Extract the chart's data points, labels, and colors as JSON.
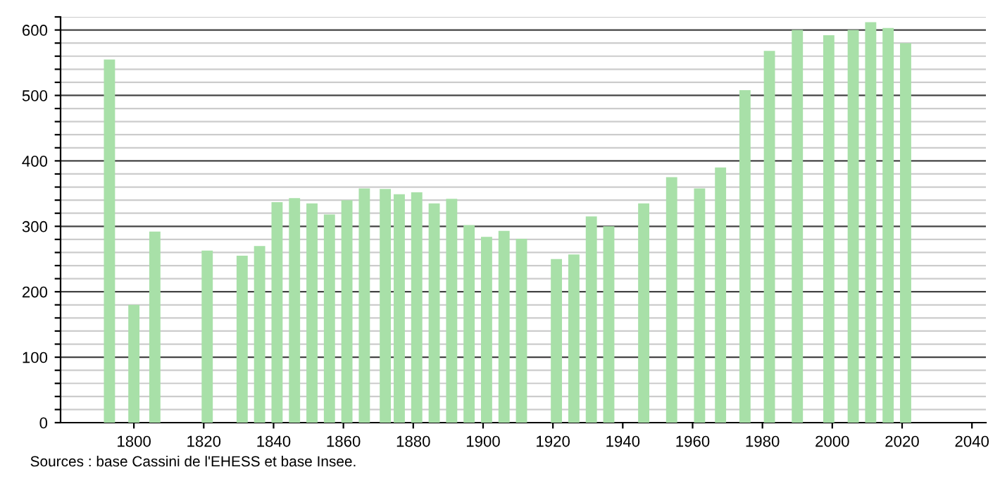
{
  "chart_data": {
    "type": "bar",
    "x": [
      1793,
      1800,
      1806,
      1821,
      1831,
      1836,
      1841,
      1846,
      1851,
      1856,
      1861,
      1866,
      1872,
      1876,
      1881,
      1886,
      1891,
      1896,
      1901,
      1906,
      1911,
      1921,
      1926,
      1931,
      1936,
      1946,
      1954,
      1962,
      1968,
      1975,
      1982,
      1990,
      1999,
      2006,
      2011,
      2016,
      2021
    ],
    "values": [
      555,
      180,
      292,
      263,
      255,
      270,
      337,
      343,
      335,
      318,
      340,
      358,
      357,
      349,
      352,
      335,
      342,
      302,
      284,
      293,
      281,
      250,
      257,
      315,
      300,
      335,
      375,
      358,
      390,
      508,
      568,
      600,
      592,
      600,
      612,
      603,
      580
    ],
    "color": "#a8e0a8",
    "xlim": [
      1779,
      2044
    ],
    "xticks": [
      1800,
      1820,
      1840,
      1860,
      1880,
      1900,
      1920,
      1940,
      1960,
      1980,
      2000,
      2020,
      2040
    ],
    "ylim": [
      0,
      620
    ],
    "yticks": [
      0,
      {
        "value": 20,
        "label": null
      },
      {
        "value": 40,
        "label": null
      },
      {
        "value": 60,
        "label": null
      },
      {
        "value": 80,
        "label": null
      },
      100,
      {
        "value": 120,
        "label": null
      },
      {
        "value": 140,
        "label": null
      },
      {
        "value": 160,
        "label": null
      },
      {
        "value": 180,
        "label": null
      },
      200,
      {
        "value": 220,
        "label": null
      },
      {
        "value": 240,
        "label": null
      },
      {
        "value": 260,
        "label": null
      },
      {
        "value": 280,
        "label": null
      },
      300,
      {
        "value": 320,
        "label": null
      },
      {
        "value": 340,
        "label": null
      },
      {
        "value": 360,
        "label": null
      },
      {
        "value": 380,
        "label": null
      },
      400,
      {
        "value": 420,
        "label": null
      },
      {
        "value": 440,
        "label": null
      },
      {
        "value": 460,
        "label": null
      },
      {
        "value": 480,
        "label": null
      },
      500,
      {
        "value": 520,
        "label": null
      },
      {
        "value": 540,
        "label": null
      },
      {
        "value": 560,
        "label": null
      },
      {
        "value": 580,
        "label": null
      },
      600,
      {
        "value": 620,
        "label": null
      }
    ],
    "grid": "y",
    "annotations": [
      "Sources : base Cassini de l'EHESS et base Insee."
    ]
  }
}
